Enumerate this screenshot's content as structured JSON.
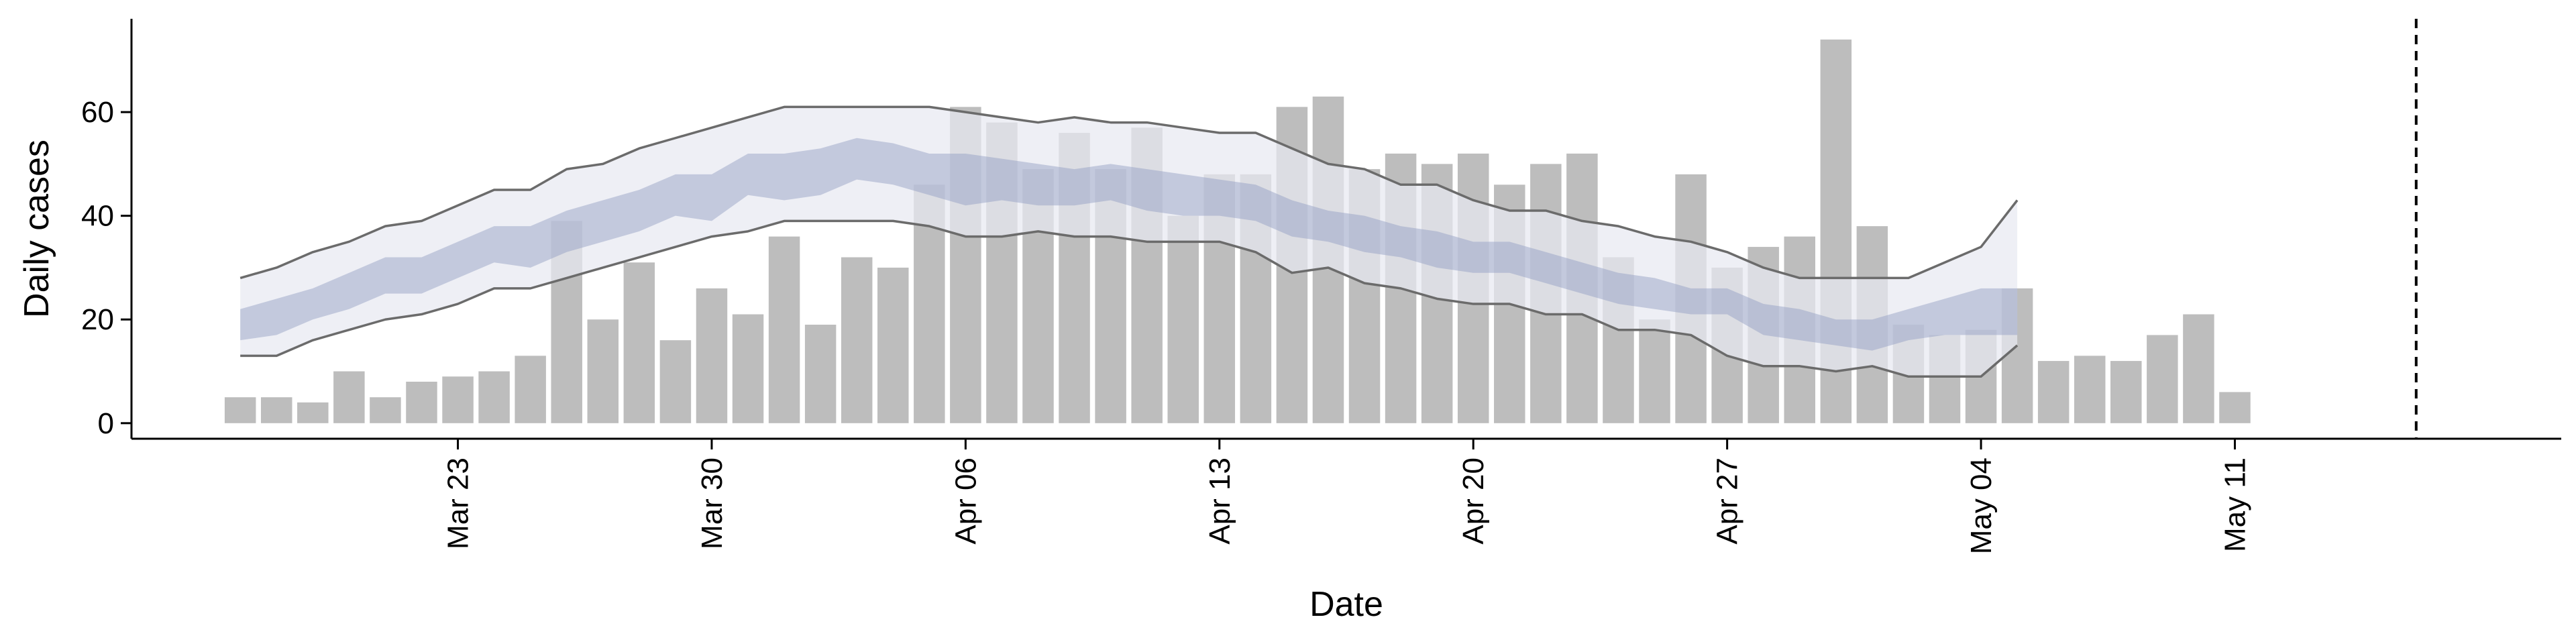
{
  "chart_data": {
    "type": "bar",
    "title": "",
    "xlabel": "Date",
    "ylabel": "Daily cases",
    "ylim": [
      -3,
      78
    ],
    "y_ticks": [
      0,
      20,
      40,
      60
    ],
    "x_ticks": [
      {
        "label": "Mar 23",
        "day": 3
      },
      {
        "label": "Mar 30",
        "day": 10
      },
      {
        "label": "Apr 06",
        "day": 17
      },
      {
        "label": "Apr 13",
        "day": 24
      },
      {
        "label": "Apr 20",
        "day": 31
      },
      {
        "label": "Apr 27",
        "day": 38
      },
      {
        "label": "May 04",
        "day": 45
      },
      {
        "label": "May 11",
        "day": 52
      }
    ],
    "x_range": [
      -6,
      61
    ],
    "bar_start_day": -3,
    "cases": [
      5,
      5,
      4,
      10,
      5,
      8,
      9,
      10,
      13,
      39,
      20,
      31,
      16,
      26,
      21,
      36,
      19,
      32,
      30,
      46,
      61,
      58,
      49,
      56,
      49,
      57,
      40,
      48,
      48,
      61,
      63,
      49,
      52,
      50,
      52,
      46,
      50,
      52,
      32,
      20,
      48,
      30,
      34,
      36,
      74,
      38,
      19,
      17,
      18,
      26,
      12,
      13,
      12,
      17,
      21,
      6
    ],
    "band_start_day": -3,
    "band_outer_upper": [
      28,
      30,
      33,
      35,
      38,
      39,
      42,
      45,
      45,
      49,
      50,
      53,
      55,
      57,
      59,
      61,
      61,
      61,
      61,
      61,
      60,
      59,
      58,
      59,
      58,
      58,
      57,
      56,
      56,
      53,
      50,
      49,
      46,
      46,
      43,
      41,
      41,
      39,
      38,
      36,
      35,
      33,
      30,
      28,
      28,
      28,
      28,
      31,
      34,
      43
    ],
    "band_outer_lower": [
      13,
      13,
      16,
      18,
      20,
      21,
      23,
      26,
      26,
      28,
      30,
      32,
      34,
      36,
      37,
      39,
      39,
      39,
      39,
      38,
      36,
      36,
      37,
      36,
      36,
      35,
      35,
      35,
      33,
      29,
      30,
      27,
      26,
      24,
      23,
      23,
      21,
      21,
      18,
      18,
      17,
      13,
      11,
      11,
      10,
      11,
      9,
      9,
      9,
      15
    ],
    "band_inner_upper": [
      22,
      24,
      26,
      29,
      32,
      32,
      35,
      38,
      38,
      41,
      43,
      45,
      48,
      48,
      52,
      52,
      53,
      55,
      54,
      52,
      52,
      51,
      50,
      49,
      50,
      49,
      48,
      47,
      46,
      43,
      41,
      40,
      38,
      37,
      35,
      35,
      33,
      31,
      29,
      28,
      26,
      26,
      23,
      22,
      20,
      20,
      22,
      24,
      26,
      26
    ],
    "band_inner_lower": [
      16,
      17,
      20,
      22,
      25,
      25,
      28,
      31,
      30,
      33,
      35,
      37,
      40,
      39,
      44,
      43,
      44,
      47,
      46,
      44,
      42,
      43,
      42,
      42,
      43,
      41,
      40,
      40,
      39,
      36,
      35,
      33,
      32,
      30,
      29,
      29,
      27,
      25,
      23,
      22,
      21,
      21,
      17,
      16,
      15,
      14,
      16,
      17,
      17,
      17
    ],
    "vline_day": 57,
    "colors": {
      "bars": "#bdbdbd",
      "outer_band": "#e8e9f1",
      "inner_band": "#c3c9dd",
      "bound_line": "#6b6b6b",
      "vline": "#000000",
      "projection_band": "#eeeff5"
    }
  }
}
